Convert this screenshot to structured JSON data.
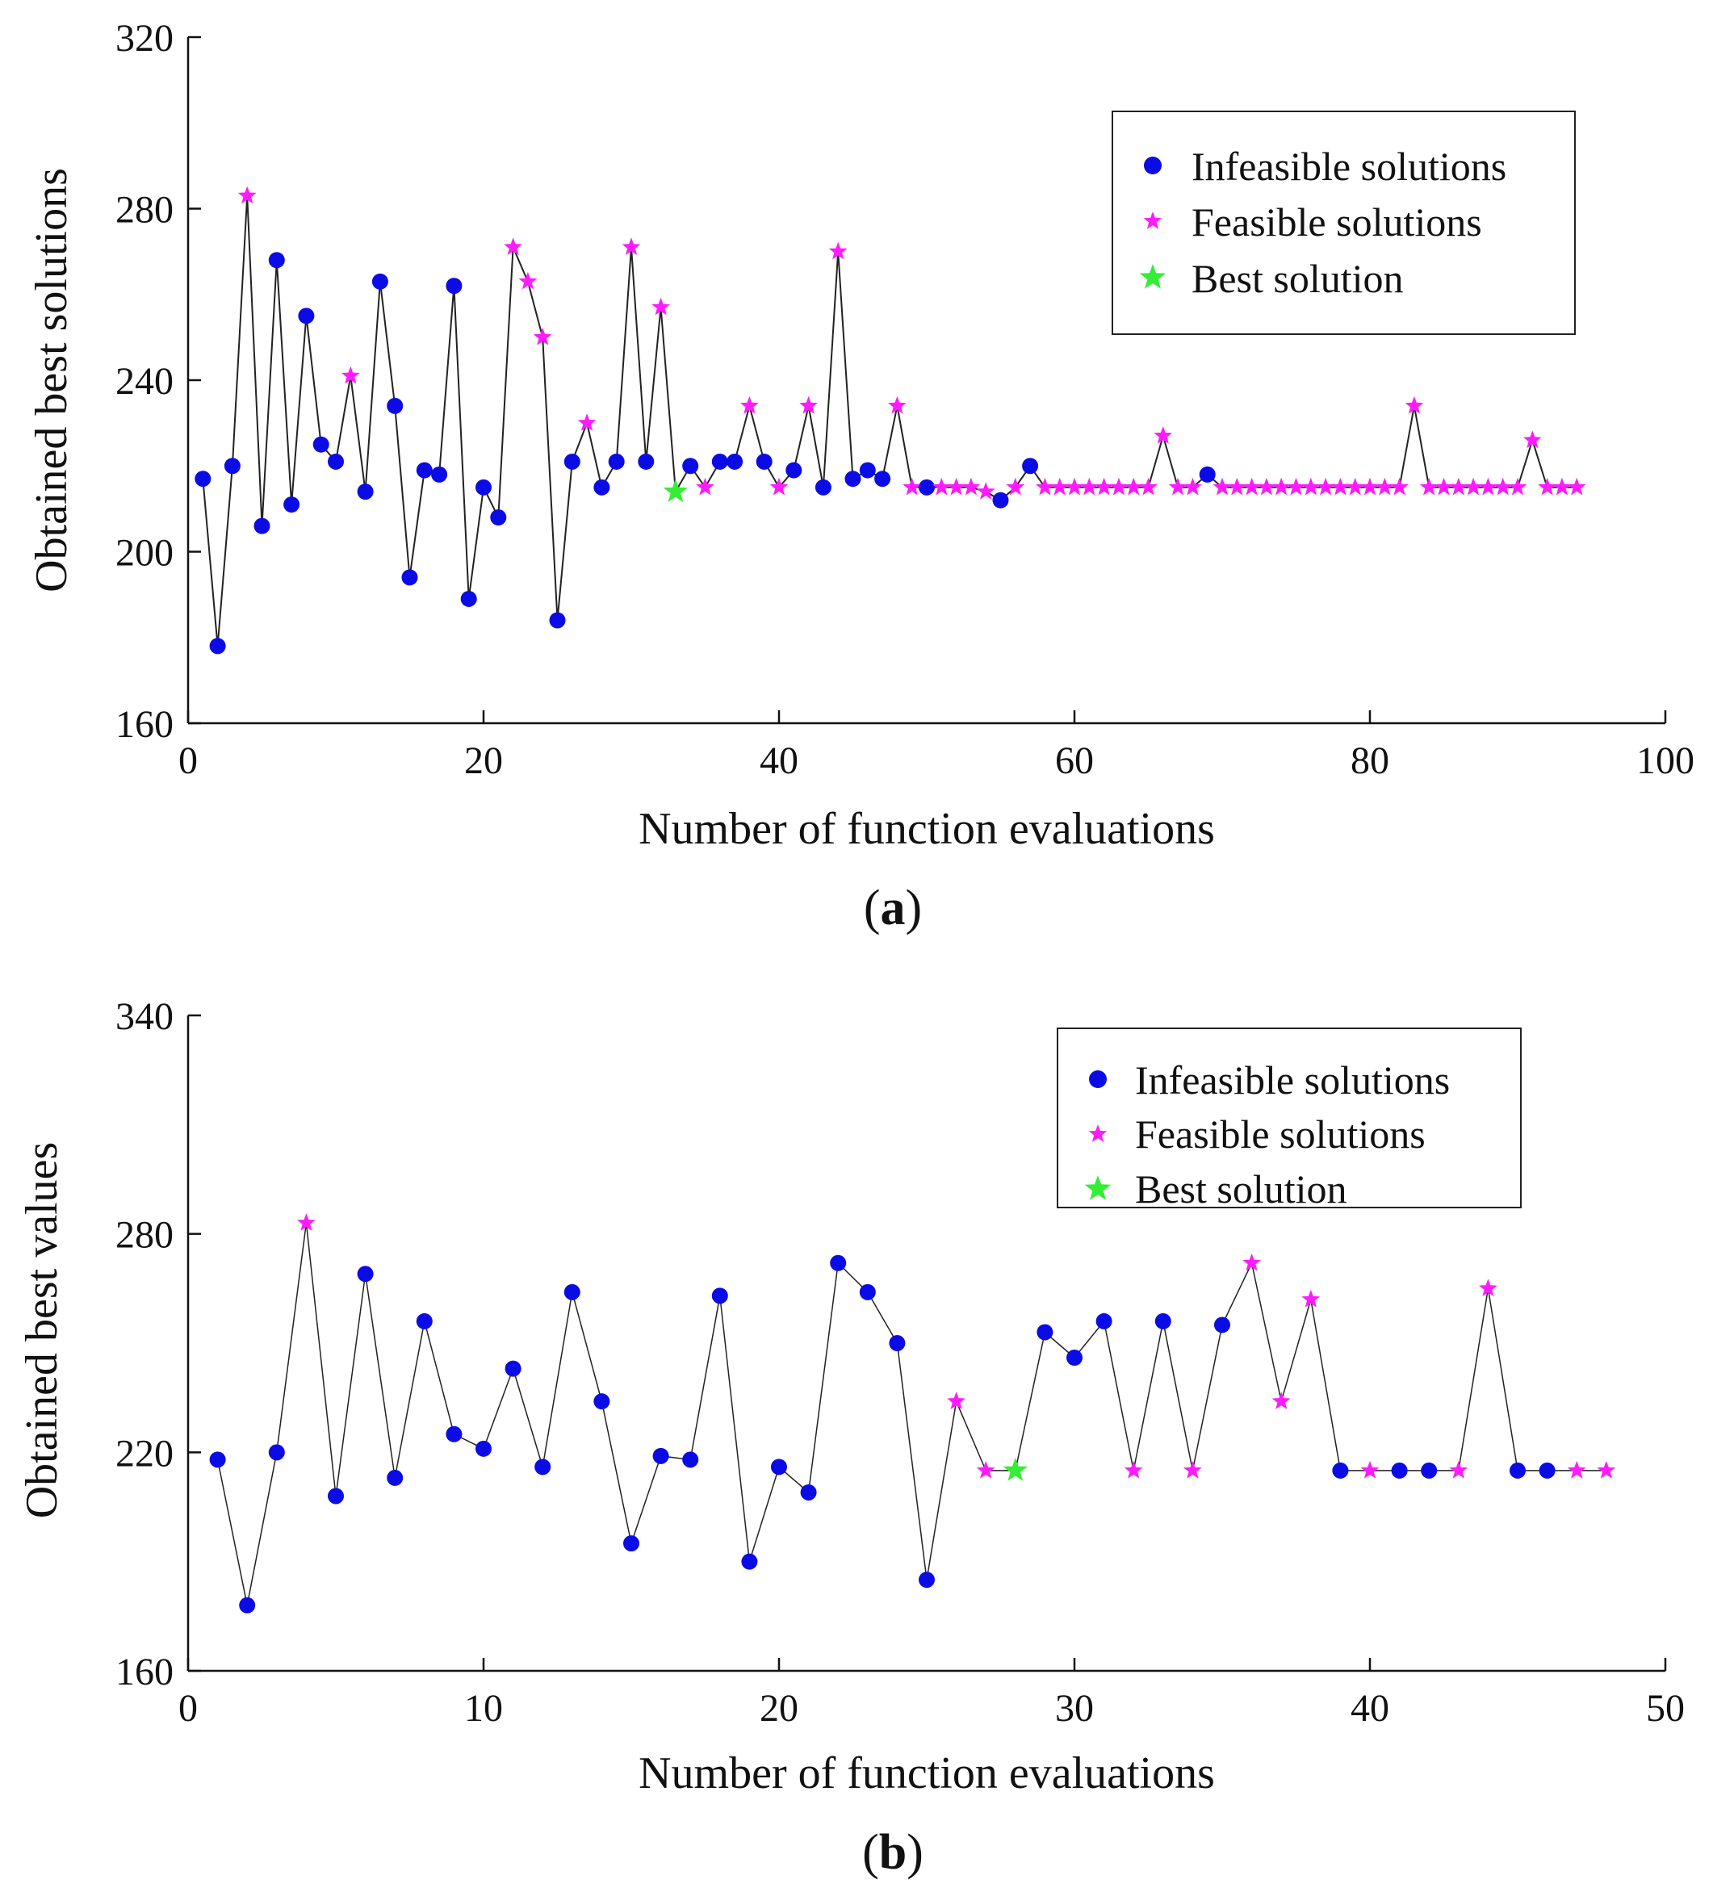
{
  "chart_data": [
    {
      "type": "line",
      "panel_label": "a",
      "xlabel": "Number of function evaluations",
      "ylabel": "Obtained best solutions",
      "xlim": [
        0,
        100
      ],
      "ylim": [
        160,
        320
      ],
      "xticks": [
        0,
        20,
        40,
        60,
        80,
        100
      ],
      "yticks": [
        160,
        200,
        240,
        280,
        320
      ],
      "legend_position": "top-right",
      "legend": [
        "Infeasible solutions",
        "Feasible solutions",
        "Best solution"
      ],
      "x": [
        1,
        2,
        3,
        4,
        5,
        6,
        7,
        8,
        9,
        10,
        11,
        12,
        13,
        14,
        15,
        16,
        17,
        18,
        19,
        20,
        21,
        22,
        23,
        24,
        25,
        26,
        27,
        28,
        29,
        30,
        31,
        32,
        33,
        34,
        35,
        36,
        37,
        38,
        39,
        40,
        41,
        42,
        43,
        44,
        45,
        46,
        47,
        48,
        49,
        50,
        51,
        52,
        53,
        54,
        55,
        56,
        57,
        58,
        59,
        60,
        61,
        62,
        63,
        64,
        65,
        66,
        67,
        68,
        69,
        70,
        71,
        72,
        73,
        74,
        75,
        76,
        77,
        78,
        79,
        80,
        81,
        82,
        83,
        84,
        85,
        86,
        87,
        88,
        89,
        90,
        91,
        92,
        93,
        94
      ],
      "y": [
        217,
        178,
        220,
        283,
        206,
        268,
        211,
        255,
        225,
        221,
        241,
        214,
        263,
        234,
        194,
        219,
        218,
        262,
        189,
        215,
        208,
        271,
        263,
        250,
        184,
        221,
        230,
        215,
        221,
        271,
        221,
        257,
        214,
        220,
        215,
        221,
        221,
        234,
        221,
        215,
        219,
        234,
        215,
        270,
        217,
        219,
        217,
        234,
        215,
        215,
        215,
        215,
        215,
        214,
        212,
        215,
        220,
        215,
        215,
        215,
        215,
        215,
        215,
        215,
        215,
        227,
        215,
        215,
        218,
        215,
        215,
        215,
        215,
        215,
        215,
        215,
        215,
        215,
        215,
        215,
        215,
        215,
        234,
        215,
        215,
        215,
        215,
        215,
        215,
        215,
        226,
        215,
        215,
        215
      ],
      "status": [
        "i",
        "i",
        "i",
        "f",
        "i",
        "i",
        "i",
        "i",
        "i",
        "i",
        "f",
        "i",
        "i",
        "i",
        "i",
        "i",
        "i",
        "i",
        "i",
        "i",
        "i",
        "f",
        "f",
        "f",
        "i",
        "i",
        "f",
        "i",
        "i",
        "f",
        "i",
        "f",
        "b",
        "i",
        "f",
        "i",
        "i",
        "f",
        "i",
        "f",
        "i",
        "f",
        "i",
        "f",
        "i",
        "i",
        "i",
        "f",
        "f",
        "i",
        "f",
        "f",
        "f",
        "f",
        "i",
        "f",
        "i",
        "f",
        "f",
        "f",
        "f",
        "f",
        "f",
        "f",
        "f",
        "f",
        "f",
        "f",
        "i",
        "f",
        "f",
        "f",
        "f",
        "f",
        "f",
        "f",
        "f",
        "f",
        "f",
        "f",
        "f",
        "f",
        "f",
        "f",
        "f",
        "f",
        "f",
        "f",
        "f",
        "f",
        "f",
        "f",
        "f",
        "f"
      ]
    },
    {
      "type": "line",
      "panel_label": "b",
      "xlabel": "Number of function evaluations",
      "ylabel": "Obtained best values",
      "xlim": [
        0,
        50
      ],
      "ylim": [
        160,
        340
      ],
      "xticks": [
        0,
        10,
        20,
        30,
        40,
        50
      ],
      "yticks": [
        160,
        220,
        280,
        340
      ],
      "legend_position": "top-right",
      "legend": [
        "Infeasible solutions",
        "Feasible solutions",
        "Best solution"
      ],
      "x": [
        1,
        2,
        3,
        4,
        5,
        6,
        7,
        8,
        9,
        10,
        11,
        12,
        13,
        14,
        15,
        16,
        17,
        18,
        19,
        20,
        21,
        22,
        23,
        24,
        25,
        26,
        27,
        28,
        29,
        30,
        31,
        32,
        33,
        34,
        35,
        36,
        37,
        38,
        39,
        40,
        41,
        42,
        43,
        44,
        45,
        46,
        47,
        48
      ],
      "y": [
        218,
        178,
        220,
        283,
        208,
        269,
        213,
        256,
        225,
        221,
        243,
        216,
        264,
        234,
        195,
        219,
        218,
        263,
        190,
        216,
        209,
        272,
        264,
        250,
        185,
        234,
        215,
        215,
        253,
        246,
        256,
        215,
        256,
        215,
        255,
        272,
        234,
        262,
        215,
        215,
        215,
        215,
        215,
        265,
        215,
        215,
        215,
        215
      ],
      "status": [
        "i",
        "i",
        "i",
        "f",
        "i",
        "i",
        "i",
        "i",
        "i",
        "i",
        "i",
        "i",
        "i",
        "i",
        "i",
        "i",
        "i",
        "i",
        "i",
        "i",
        "i",
        "i",
        "i",
        "i",
        "i",
        "f",
        "f",
        "b",
        "i",
        "i",
        "i",
        "f",
        "i",
        "f",
        "i",
        "f",
        "f",
        "f",
        "i",
        "f",
        "i",
        "i",
        "f",
        "f",
        "i",
        "i",
        "f",
        "f"
      ]
    }
  ],
  "colors": {
    "infeasible": "#0b0be6",
    "feasible": "#ff1aff",
    "best": "#33ee33",
    "line": "#222222",
    "axis": "#111111"
  }
}
